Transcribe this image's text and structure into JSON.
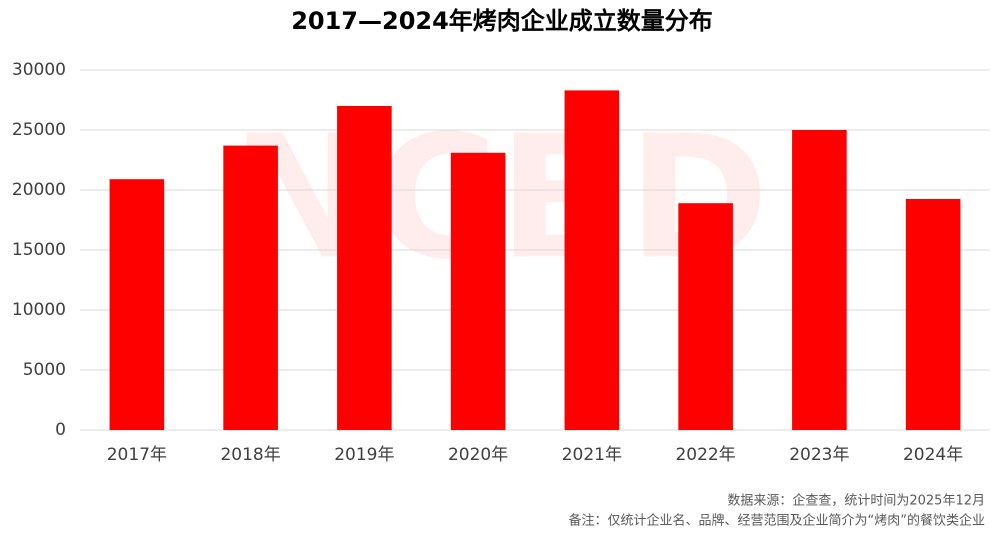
{
  "chart_data": {
    "type": "bar",
    "title": "2017—2024年烤肉企业成立数量分布",
    "categories": [
      "2017年",
      "2018年",
      "2019年",
      "2020年",
      "2021年",
      "2022年",
      "2023年",
      "2024年"
    ],
    "values": [
      20900,
      23700,
      27000,
      23100,
      28300,
      18900,
      25000,
      19250
    ],
    "color": "#ff0000",
    "ylim": [
      0,
      30000
    ],
    "yticks": [
      0,
      5000,
      10000,
      15000,
      20000,
      25000,
      30000
    ],
    "grid": true,
    "watermark": "NCBD",
    "source": "数据来源：企查查，统计时间为2025年12月",
    "note": "备注：仅统计企业名、品牌、经营范围及企业简介为“烤肉”的餐饮类企业"
  }
}
